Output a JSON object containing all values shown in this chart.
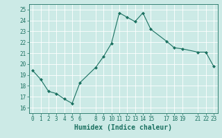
{
  "x": [
    0,
    1,
    2,
    3,
    4,
    5,
    6,
    8,
    9,
    10,
    11,
    12,
    13,
    14,
    15,
    17,
    18,
    19,
    21,
    22,
    23
  ],
  "y": [
    19.4,
    18.6,
    17.5,
    17.3,
    16.8,
    16.4,
    18.3,
    19.7,
    20.7,
    21.9,
    24.7,
    24.3,
    23.9,
    24.7,
    23.2,
    22.1,
    21.5,
    21.4,
    21.1,
    21.1,
    19.8
  ],
  "xticks": [
    0,
    1,
    2,
    3,
    4,
    5,
    6,
    8,
    9,
    10,
    11,
    12,
    13,
    14,
    15,
    17,
    18,
    19,
    21,
    22,
    23
  ],
  "yticks": [
    16,
    17,
    18,
    19,
    20,
    21,
    22,
    23,
    24,
    25
  ],
  "xlabel": "Humidex (Indice chaleur)",
  "ylim": [
    15.5,
    25.5
  ],
  "xlim": [
    -0.5,
    23.5
  ],
  "line_color": "#1a7060",
  "marker_color": "#1a7060",
  "bg_color": "#cceae6",
  "grid_color": "#ffffff",
  "tick_label_color": "#1a7060",
  "axis_color": "#1a7060",
  "xlabel_color": "#1a7060",
  "tick_fontsize": 5.5,
  "xlabel_fontsize": 7.0
}
